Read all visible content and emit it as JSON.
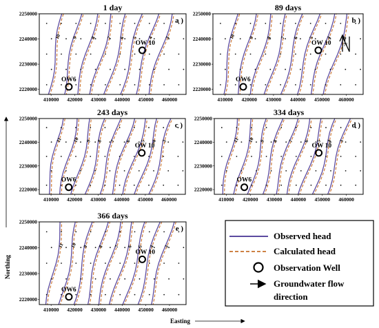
{
  "figure": {
    "x_axis_label": "Easting",
    "y_axis_label": "Northing"
  },
  "legend": {
    "items": [
      {
        "label": "Observed head",
        "kind": "line-solid",
        "color": "#5b4aa0"
      },
      {
        "label": "Calculated head",
        "kind": "line-dashed",
        "color": "#c8702a"
      },
      {
        "label": "Observation Well",
        "kind": "circle",
        "color": "#000000"
      },
      {
        "label": "Groundwater flow",
        "label2": "direction",
        "kind": "arrow",
        "color": "#000000"
      }
    ]
  },
  "chart_data": [
    {
      "type": "contour",
      "title": "1 day",
      "panel_tag": "a )",
      "x_ticks": [
        "410000",
        "420000",
        "430000",
        "440000",
        "450000",
        "460000"
      ],
      "y_ticks": [
        "2250000",
        "2240000",
        "2230000",
        "2220000"
      ],
      "xlim": [
        405000,
        467000
      ],
      "ylim": [
        2218000,
        2250000
      ],
      "wells": [
        {
          "label": "OW 10",
          "x": 448500,
          "y": 2235500
        },
        {
          "label": "OW6",
          "x": 417500,
          "y": 2221000
        }
      ],
      "contour_labels": [
        "10",
        "9",
        "8",
        "7",
        "6",
        "5",
        "4",
        "3"
      ]
    },
    {
      "type": "contour",
      "title": "89 days",
      "panel_tag": "b )",
      "x_ticks": [
        "410000",
        "420000",
        "430000",
        "440000",
        "450000",
        "460000"
      ],
      "y_ticks": [
        "2250000",
        "2240000",
        "2230000",
        "2220000"
      ],
      "xlim": [
        405000,
        467000
      ],
      "ylim": [
        2218000,
        2250000
      ],
      "wells": [
        {
          "label": "OW 10",
          "x": 448500,
          "y": 2235500
        },
        {
          "label": "OW6",
          "x": 417500,
          "y": 2221000
        }
      ],
      "contour_labels": [
        "10",
        "9",
        "8",
        "7",
        "6",
        "5",
        "4",
        "3"
      ],
      "north_arrow": "N"
    },
    {
      "type": "contour",
      "title": "243 days",
      "panel_tag": "c )",
      "x_ticks": [
        "410000",
        "420000",
        "430000",
        "440000",
        "450000",
        "460000"
      ],
      "y_ticks": [
        "2250000",
        "2240000",
        "2230000",
        "2220000"
      ],
      "xlim": [
        405000,
        467000
      ],
      "ylim": [
        2218000,
        2250000
      ],
      "wells": [
        {
          "label": "OW 10",
          "x": 448500,
          "y": 2235500
        },
        {
          "label": "OW6",
          "x": 417500,
          "y": 2221000
        }
      ],
      "contour_labels": [
        "11",
        "10",
        "9",
        "8",
        "7",
        "6",
        "5",
        "4",
        "3"
      ]
    },
    {
      "type": "contour",
      "title": "334 days",
      "panel_tag": "d )",
      "x_ticks": [
        "410000",
        "420000",
        "430000",
        "440000",
        "450000",
        "460000"
      ],
      "y_ticks": [
        "2250000",
        "2240000",
        "2230000",
        "2220000"
      ],
      "xlim": [
        405000,
        467000
      ],
      "ylim": [
        2218000,
        2250000
      ],
      "wells": [
        {
          "label": "OW 10",
          "x": 448500,
          "y": 2235500
        },
        {
          "label": "OW6",
          "x": 417500,
          "y": 2221000
        }
      ],
      "contour_labels": [
        "11",
        "10",
        "9",
        "8",
        "7",
        "6",
        "5",
        "4",
        "3"
      ]
    },
    {
      "type": "contour",
      "title": "366 days",
      "panel_tag": "e )",
      "x_ticks": [
        "410000",
        "420000",
        "430000",
        "440000",
        "450000",
        "460000"
      ],
      "y_ticks": [
        "2250000",
        "2240000",
        "2230000",
        "2220000"
      ],
      "xlim": [
        405000,
        467000
      ],
      "ylim": [
        2218000,
        2250000
      ],
      "wells": [
        {
          "label": "OW 10",
          "x": 448500,
          "y": 2235500
        },
        {
          "label": "OW6",
          "x": 417500,
          "y": 2221000
        }
      ],
      "contour_labels": [
        "11",
        "10",
        "9",
        "8",
        "7",
        "6",
        "5",
        "4",
        "3"
      ]
    }
  ]
}
